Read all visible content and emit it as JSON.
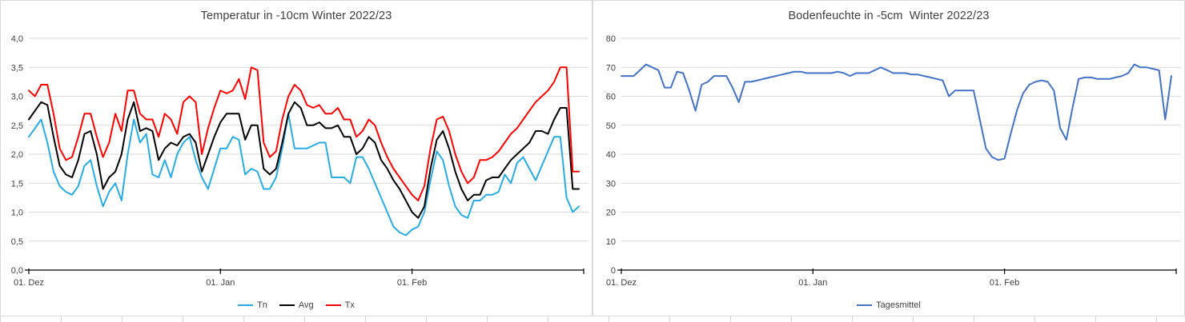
{
  "page": {
    "background": "#ffffff",
    "grid_color": "#d9d9d9",
    "axis_color": "#000000",
    "text_color": "#404040"
  },
  "chart_data": [
    {
      "type": "line",
      "title": "Temperatur in -10cm Winter 2022/23",
      "xlabel": "",
      "ylabel": "",
      "x_unit": "daily values from 01. Dez 2022 to 28. Feb 2023",
      "ylim": [
        0,
        4
      ],
      "grid": true,
      "legend_position": "bottom",
      "y_tick_values": [
        0,
        0.5,
        1,
        1.5,
        2,
        2.5,
        3,
        3.5,
        4
      ],
      "y_tick_labels": [
        "0,0",
        "0,5",
        "1,0",
        "1,5",
        "2,0",
        "2,5",
        "3,0",
        "3,5",
        "4,0"
      ],
      "x_ticks": [
        {
          "label": "01. Dez",
          "day": 0
        },
        {
          "label": "01. Jan",
          "day": 31
        },
        {
          "label": "01. Feb",
          "day": 62
        }
      ],
      "series": [
        {
          "name": "Tn",
          "color": "#29ABE2",
          "values": [
            2.3,
            2.45,
            2.6,
            2.2,
            1.7,
            1.45,
            1.35,
            1.3,
            1.45,
            1.8,
            1.9,
            1.45,
            1.1,
            1.35,
            1.5,
            1.2,
            2.0,
            2.6,
            2.2,
            2.35,
            1.65,
            1.6,
            1.9,
            1.6,
            2.0,
            2.2,
            2.3,
            1.9,
            1.6,
            1.4,
            1.75,
            2.1,
            2.1,
            2.3,
            2.25,
            1.65,
            1.75,
            1.7,
            1.4,
            1.4,
            1.6,
            2.1,
            2.7,
            2.1,
            2.1,
            2.1,
            2.15,
            2.2,
            2.2,
            1.6,
            1.6,
            1.6,
            1.5,
            1.95,
            1.95,
            1.75,
            1.5,
            1.25,
            1.0,
            0.75,
            0.65,
            0.6,
            0.7,
            0.75,
            1.0,
            1.55,
            2.05,
            1.9,
            1.45,
            1.1,
            0.95,
            0.9,
            1.2,
            1.2,
            1.3,
            1.3,
            1.35,
            1.65,
            1.5,
            1.85,
            1.95,
            1.75,
            1.55,
            1.8,
            2.05,
            2.3,
            2.3,
            1.25,
            1.0,
            1.1
          ]
        },
        {
          "name": "Avg",
          "color": "#000000",
          "values": [
            2.6,
            2.75,
            2.9,
            2.85,
            2.3,
            1.8,
            1.65,
            1.6,
            1.9,
            2.35,
            2.4,
            2.0,
            1.4,
            1.6,
            1.7,
            2.0,
            2.6,
            2.9,
            2.4,
            2.45,
            2.4,
            1.9,
            2.1,
            2.2,
            2.15,
            2.3,
            2.35,
            2.2,
            1.7,
            2.0,
            2.3,
            2.55,
            2.7,
            2.7,
            2.7,
            2.25,
            2.5,
            2.5,
            1.75,
            1.65,
            1.75,
            2.2,
            2.7,
            2.9,
            2.8,
            2.5,
            2.5,
            2.55,
            2.45,
            2.45,
            2.5,
            2.3,
            2.3,
            2.0,
            2.1,
            2.3,
            2.2,
            1.9,
            1.75,
            1.55,
            1.4,
            1.2,
            1.0,
            0.9,
            1.1,
            1.75,
            2.25,
            2.4,
            2.1,
            1.7,
            1.4,
            1.2,
            1.3,
            1.3,
            1.55,
            1.6,
            1.6,
            1.75,
            1.9,
            2.0,
            2.1,
            2.2,
            2.4,
            2.4,
            2.35,
            2.6,
            2.8,
            2.8,
            1.4,
            1.4
          ]
        },
        {
          "name": "Tx",
          "color": "#FF0000",
          "values": [
            3.1,
            3.0,
            3.2,
            3.2,
            2.7,
            2.1,
            1.9,
            1.95,
            2.3,
            2.7,
            2.7,
            2.3,
            1.95,
            2.2,
            2.7,
            2.4,
            3.1,
            3.1,
            2.7,
            2.6,
            2.6,
            2.3,
            2.7,
            2.6,
            2.35,
            2.9,
            3.0,
            2.9,
            2.0,
            2.45,
            2.8,
            3.1,
            3.05,
            3.1,
            3.3,
            2.95,
            3.5,
            3.45,
            2.2,
            1.95,
            2.05,
            2.6,
            3.0,
            3.2,
            3.1,
            2.85,
            2.8,
            2.85,
            2.7,
            2.7,
            2.8,
            2.6,
            2.6,
            2.3,
            2.4,
            2.6,
            2.5,
            2.2,
            1.95,
            1.75,
            1.6,
            1.45,
            1.3,
            1.2,
            1.45,
            2.1,
            2.6,
            2.65,
            2.4,
            2.0,
            1.7,
            1.5,
            1.6,
            1.9,
            1.9,
            1.95,
            2.05,
            2.2,
            2.35,
            2.45,
            2.6,
            2.75,
            2.9,
            3.0,
            3.1,
            3.25,
            3.5,
            3.5,
            1.7,
            1.7
          ]
        }
      ]
    },
    {
      "type": "line",
      "title": "Bodenfeuchte in -5cm  Winter 2022/23",
      "xlabel": "",
      "ylabel": "",
      "x_unit": "daily values from 01. Dez 2022 to 28. Feb 2023",
      "ylim": [
        0,
        80
      ],
      "grid": true,
      "legend_position": "bottom",
      "y_tick_values": [
        0,
        10,
        20,
        30,
        40,
        50,
        60,
        70,
        80
      ],
      "y_tick_labels": [
        "0",
        "10",
        "20",
        "30",
        "40",
        "50",
        "60",
        "70",
        "80"
      ],
      "x_ticks": [
        {
          "label": "01. Dez",
          "day": 0
        },
        {
          "label": "01. Jan",
          "day": 31
        },
        {
          "label": "01. Feb",
          "day": 62
        }
      ],
      "series": [
        {
          "name": "Tagesmittel",
          "color": "#4472C4",
          "values": [
            67,
            67,
            67,
            69,
            71,
            70,
            69,
            63,
            63,
            68.5,
            68,
            62,
            55,
            64,
            65,
            67,
            67,
            67,
            63,
            58,
            65,
            65,
            65.5,
            66,
            66.5,
            67,
            67.5,
            68,
            68.5,
            68.5,
            68,
            68,
            68,
            68,
            68,
            68.5,
            68,
            67,
            68,
            68,
            68,
            69,
            70,
            69,
            68,
            68,
            68,
            67.5,
            67.5,
            67,
            66.5,
            66,
            65.5,
            60,
            62,
            62,
            62,
            62,
            52,
            42,
            39,
            38,
            38.5,
            47,
            55,
            61,
            64,
            65,
            65.5,
            65,
            62,
            49,
            45,
            56,
            66,
            66.5,
            66.5,
            66,
            66,
            66,
            66.5,
            67,
            68,
            71,
            70,
            70,
            69.5,
            69,
            52,
            67
          ]
        }
      ]
    }
  ]
}
